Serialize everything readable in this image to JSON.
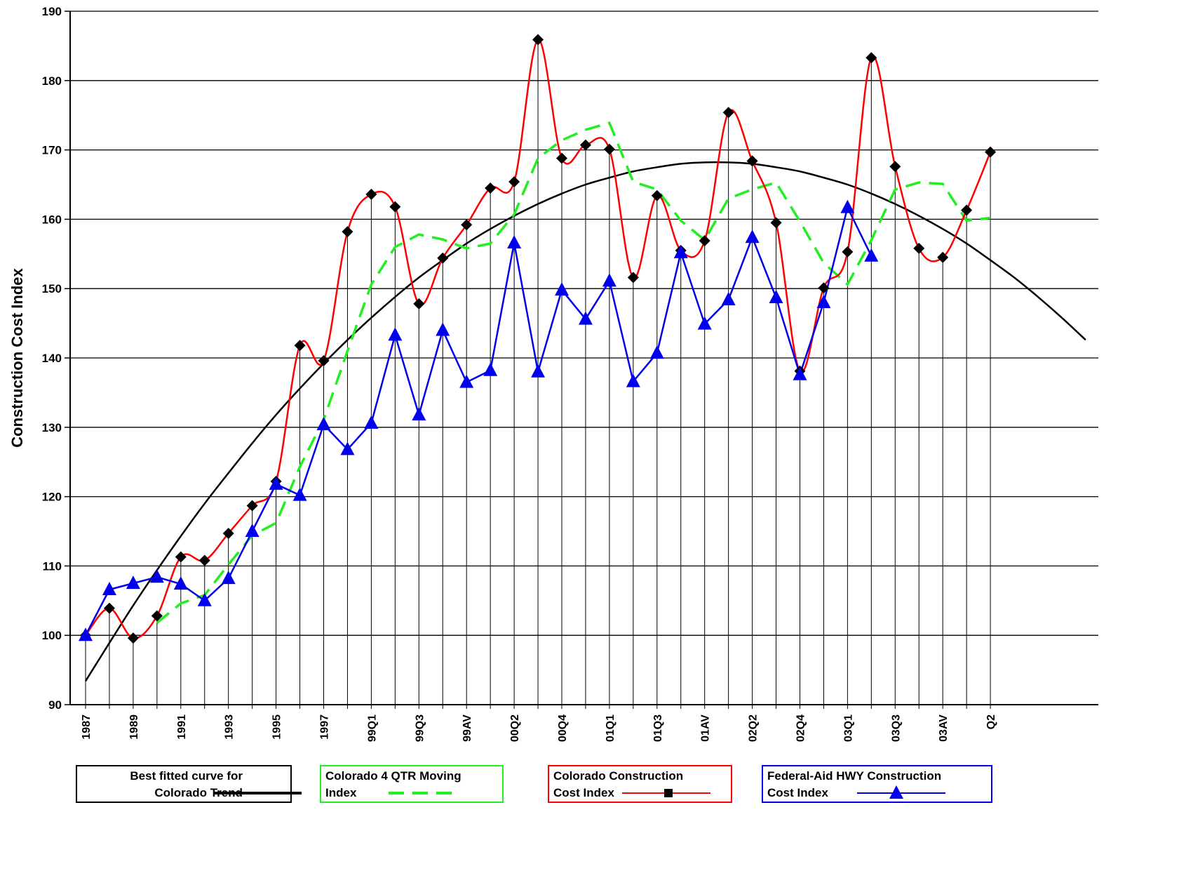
{
  "chart_data": {
    "type": "line",
    "y_label": "Construction Cost Index",
    "categories": [
      "1987",
      null,
      "1989",
      null,
      "1991",
      null,
      "1993",
      null,
      "1995",
      null,
      "1997",
      null,
      "99Q1",
      null,
      "99Q3",
      null,
      "99AV",
      null,
      "00Q2",
      null,
      "00Q4",
      null,
      "01Q1",
      null,
      "01Q3",
      null,
      "01AV",
      null,
      "02Q2",
      null,
      "02Q4",
      null,
      "03Q1",
      null,
      "03Q3",
      null,
      "03AV",
      null,
      "Q2",
      null,
      null,
      null,
      null
    ],
    "ylim": [
      90,
      190
    ],
    "yticks": [
      90,
      100,
      110,
      120,
      130,
      140,
      150,
      160,
      170,
      180,
      190
    ],
    "grid": true,
    "legend_position": "bottom",
    "drop_lines_series": 2,
    "series": [
      {
        "name": "Best fitted curve for Colorado Trend",
        "color": "#000000",
        "style": "solid",
        "smooth": true,
        "marker": "none",
        "values": [
          93.4,
          98.9,
          104.3,
          109.4,
          114.3,
          119.0,
          123.4,
          127.7,
          131.8,
          135.6,
          139.2,
          142.6,
          145.8,
          148.8,
          151.6,
          154.1,
          156.5,
          158.6,
          160.5,
          162.2,
          163.7,
          165.0,
          166.0,
          166.9,
          167.5,
          168.0,
          168.2,
          168.2,
          168.0,
          167.5,
          166.9,
          166.0,
          165.0,
          163.7,
          162.2,
          160.5,
          158.6,
          156.5,
          154.1,
          151.6,
          148.8,
          145.8,
          142.6
        ]
      },
      {
        "name": "Colorado 4 QTR Moving Index",
        "color": "#22ee22",
        "style": "dash",
        "smooth": false,
        "marker": "none",
        "values": [
          null,
          null,
          null,
          101.8,
          104.6,
          105.8,
          110.2,
          114.4,
          116.2,
          124.3,
          131.1,
          141.0,
          150.6,
          156.0,
          157.8,
          157.1,
          155.8,
          156.5,
          160.7,
          168.8,
          171.4,
          172.9,
          173.9,
          165.4,
          164.3,
          159.8,
          157.0,
          163.0,
          164.3,
          165.3,
          159.7,
          153.7,
          150.6,
          157.0,
          164.3,
          165.3,
          165.1,
          159.8,
          160.2,
          null,
          null,
          null,
          null
        ]
      },
      {
        "name": "Colorado Construction Cost  Index",
        "color": "#ff0000",
        "style": "solid",
        "smooth": true,
        "marker": "diamond",
        "values": [
          100.0,
          103.9,
          99.6,
          102.8,
          111.3,
          110.8,
          114.7,
          118.7,
          122.2,
          141.8,
          139.6,
          158.2,
          163.6,
          161.8,
          147.8,
          154.4,
          159.2,
          164.5,
          165.4,
          185.9,
          168.8,
          170.7,
          170.1,
          151.6,
          163.4,
          155.5,
          156.9,
          175.4,
          168.4,
          159.5,
          138.1,
          150.1,
          155.3,
          183.3,
          167.6,
          155.8,
          154.5,
          161.3,
          169.7,
          null,
          null,
          null,
          null
        ]
      },
      {
        "name": "Federal-Aid HWY Construction Cost Index",
        "color": "#0000ee",
        "style": "solid",
        "smooth": false,
        "marker": "triangle",
        "values": [
          100.0,
          106.6,
          107.5,
          108.4,
          107.4,
          105.0,
          108.2,
          115.0,
          121.8,
          120.2,
          130.4,
          126.8,
          130.6,
          143.3,
          131.8,
          144.0,
          136.5,
          138.2,
          156.6,
          138.0,
          149.8,
          145.6,
          151.1,
          136.6,
          140.7,
          155.2,
          144.9,
          148.4,
          157.4,
          148.7,
          137.6,
          148.0,
          161.7,
          154.7,
          null,
          null,
          null,
          null,
          null,
          null,
          null,
          null,
          null
        ]
      }
    ]
  }
}
